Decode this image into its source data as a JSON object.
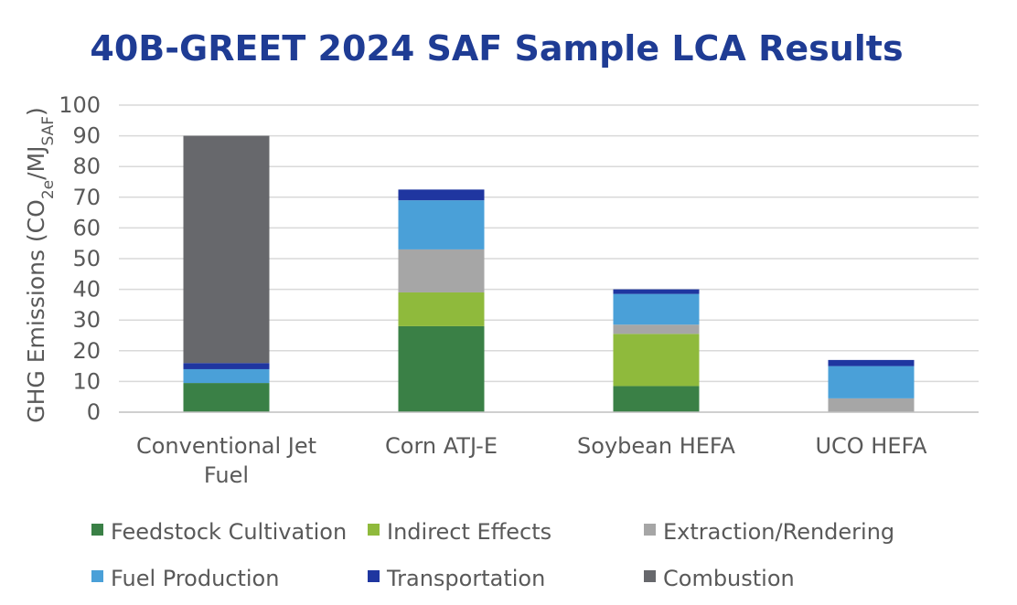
{
  "chart_data": {
    "type": "bar",
    "stacked": true,
    "title": "40B-GREET 2024 SAF Sample LCA Results",
    "ylabel": {
      "prefix": "GHG Emissions (CO",
      "sub1": "2e",
      "mid": "/MJ",
      "sub2": "SAF",
      "suffix": ")"
    },
    "xlabel": "",
    "ylim": [
      0,
      100
    ],
    "yticks": [
      "0",
      "10",
      "20",
      "30",
      "40",
      "50",
      "60",
      "70",
      "80",
      "90",
      "100"
    ],
    "grid": true,
    "legend_position": "bottom",
    "categories": [
      [
        "Conventional Jet",
        "Fuel"
      ],
      [
        "Corn ATJ-E"
      ],
      [
        "Soybean HEFA"
      ],
      [
        "UCO HEFA"
      ]
    ],
    "series": [
      {
        "name": "Feedstock Cultivation",
        "color": "#3a8046",
        "values": [
          9.5,
          28,
          8.5,
          0
        ]
      },
      {
        "name": "Indirect Effects",
        "color": "#8fba3c",
        "values": [
          0,
          11,
          17,
          0
        ]
      },
      {
        "name": "Extraction/Rendering",
        "color": "#a6a6a6",
        "values": [
          0,
          14,
          3,
          4.5
        ]
      },
      {
        "name": "Fuel Production",
        "color": "#4aa0d8",
        "values": [
          4.5,
          16,
          10,
          10.5
        ]
      },
      {
        "name": "Transportation",
        "color": "#1f36a0",
        "values": [
          2,
          3.5,
          1.5,
          2
        ]
      },
      {
        "name": "Combustion",
        "color": "#67686c",
        "values": [
          74,
          0,
          0,
          0
        ]
      }
    ]
  }
}
